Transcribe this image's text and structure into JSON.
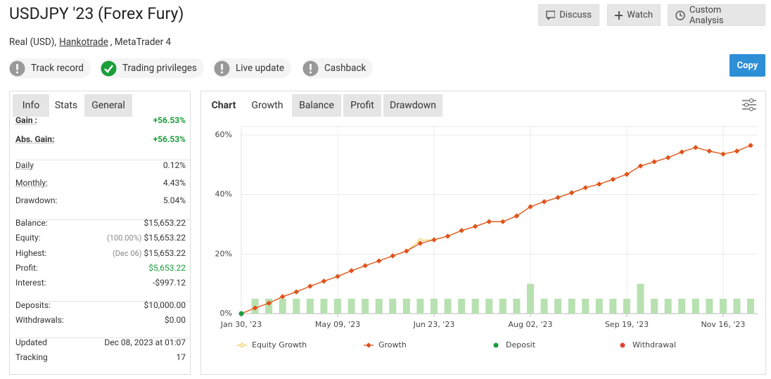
{
  "header": {
    "title": "USDJPY '23 (Forex Fury)",
    "account_type": "Real (USD),",
    "broker": "Hankotrade",
    "platform": ", MetaTrader 4"
  },
  "buttons": {
    "discuss": "Discuss",
    "watch": "Watch",
    "custom_analysis": "Custom Analysis",
    "copy": "Copy"
  },
  "badges": [
    {
      "label": "Track record",
      "ok": false
    },
    {
      "label": "Trading privileges",
      "ok": true
    },
    {
      "label": "Live update",
      "ok": false
    },
    {
      "label": "Cashback",
      "ok": false
    }
  ],
  "left_tabs": [
    "Info",
    "Stats",
    "General"
  ],
  "stats": [
    [
      {
        "label": "Gain :",
        "value": "+56.53%",
        "positive": true
      },
      {
        "label": "Abs. Gain:",
        "value": "+56.53%",
        "positive": true
      }
    ],
    [
      {
        "label": "Daily",
        "value": "0.12%"
      },
      {
        "label": "Monthly:",
        "value": "4.43%"
      },
      {
        "label": "Drawdown:",
        "value": "5.04%"
      }
    ],
    [
      {
        "label": "Balance:",
        "value": "$15,653.22"
      },
      {
        "label": "Equity:",
        "note": "(100.00%)",
        "value": "$15,653.22"
      },
      {
        "label": "Highest:",
        "note": "(Dec 06)",
        "value": "$15,653.22"
      },
      {
        "label": "Profit:",
        "value": "$5,653.22",
        "positive": true
      },
      {
        "label": "Interest:",
        "value": "-$997.12"
      }
    ],
    [
      {
        "label": "Deposits:",
        "value": "$10,000.00"
      },
      {
        "label": "Withdrawals:",
        "value": "$0.00"
      }
    ],
    [
      {
        "label": "Updated",
        "value": "Dec 08, 2023 at 01:07"
      },
      {
        "label": "Tracking",
        "value": "17"
      }
    ]
  ],
  "chart_tabs": [
    "Chart",
    "Growth",
    "Balance",
    "Profit",
    "Drawdown"
  ],
  "chart_data": {
    "type": "line",
    "categories": [
      "Jan 30, '23",
      null,
      null,
      null,
      null,
      null,
      null,
      "May 09, '23",
      null,
      null,
      null,
      null,
      null,
      null,
      "Jun 23, '23",
      null,
      null,
      null,
      null,
      null,
      null,
      "Aug 02, '23",
      null,
      null,
      null,
      null,
      null,
      null,
      "Sep 19, '23",
      null,
      null,
      null,
      null,
      null,
      null,
      "Nov 16, '23",
      null,
      null
    ],
    "ylim": [
      0,
      60
    ],
    "yticks": [
      {
        "value": 0,
        "label": "0%"
      },
      {
        "value": 20,
        "label": "20%"
      },
      {
        "value": 40,
        "label": "40%"
      },
      {
        "value": 60,
        "label": "60%"
      }
    ],
    "grid": true,
    "bars": {
      "color": "#b7e1b0",
      "values": [
        null,
        5,
        5,
        5,
        5,
        5,
        5,
        5,
        5,
        5,
        5,
        5,
        5,
        5,
        5,
        5,
        5,
        5,
        5,
        5,
        5,
        10,
        5,
        5,
        5,
        5,
        5,
        5,
        5,
        10,
        5,
        5,
        5,
        5,
        5,
        5,
        5,
        5
      ]
    },
    "series": [
      {
        "name": "Equity Growth",
        "color": "#f2c94c",
        "marker": "open-diamond",
        "values": [
          0,
          1.9,
          3.5,
          5.7,
          7.3,
          9.2,
          10.9,
          12.5,
          14.4,
          16.1,
          17.7,
          19.4,
          21.0,
          24.6,
          24.8,
          26.0,
          27.9,
          29.3,
          30.9,
          30.9,
          32.8,
          35.9,
          37.6,
          39.0,
          40.6,
          42.3,
          43.5,
          45.1,
          46.8,
          49.6,
          51.0,
          52.4,
          54.3,
          55.8,
          54.6,
          53.6,
          54.6,
          56.5
        ]
      },
      {
        "name": "Growth",
        "color": "#e0521f",
        "marker": "diamond",
        "values": [
          0,
          1.9,
          3.5,
          5.7,
          7.3,
          9.2,
          10.9,
          12.5,
          14.4,
          16.1,
          17.7,
          19.4,
          21.0,
          23.6,
          24.8,
          26.0,
          27.9,
          29.3,
          30.9,
          30.9,
          32.8,
          35.9,
          37.6,
          39.0,
          40.6,
          42.3,
          43.5,
          45.1,
          46.8,
          49.6,
          51.0,
          52.4,
          54.3,
          55.8,
          54.6,
          53.6,
          54.6,
          56.5
        ]
      },
      {
        "name": "Deposit",
        "color": "#1a9e3a",
        "marker": "dot",
        "values": [
          0,
          null,
          null,
          null,
          null,
          null,
          null,
          null,
          null,
          null,
          null,
          null,
          null,
          null,
          null,
          null,
          null,
          null,
          null,
          null,
          null,
          null,
          null,
          null,
          null,
          null,
          null,
          null,
          null,
          null,
          null,
          null,
          null,
          null,
          null,
          null,
          null,
          null
        ]
      },
      {
        "name": "Withdrawal",
        "color": "#e0452f",
        "marker": "dot",
        "values": [
          null,
          null,
          null,
          null,
          null,
          null,
          null,
          null,
          null,
          null,
          null,
          null,
          null,
          null,
          null,
          null,
          null,
          null,
          null,
          null,
          null,
          null,
          null,
          null,
          null,
          null,
          null,
          null,
          null,
          null,
          null,
          null,
          null,
          null,
          null,
          null,
          null,
          null
        ]
      }
    ]
  }
}
